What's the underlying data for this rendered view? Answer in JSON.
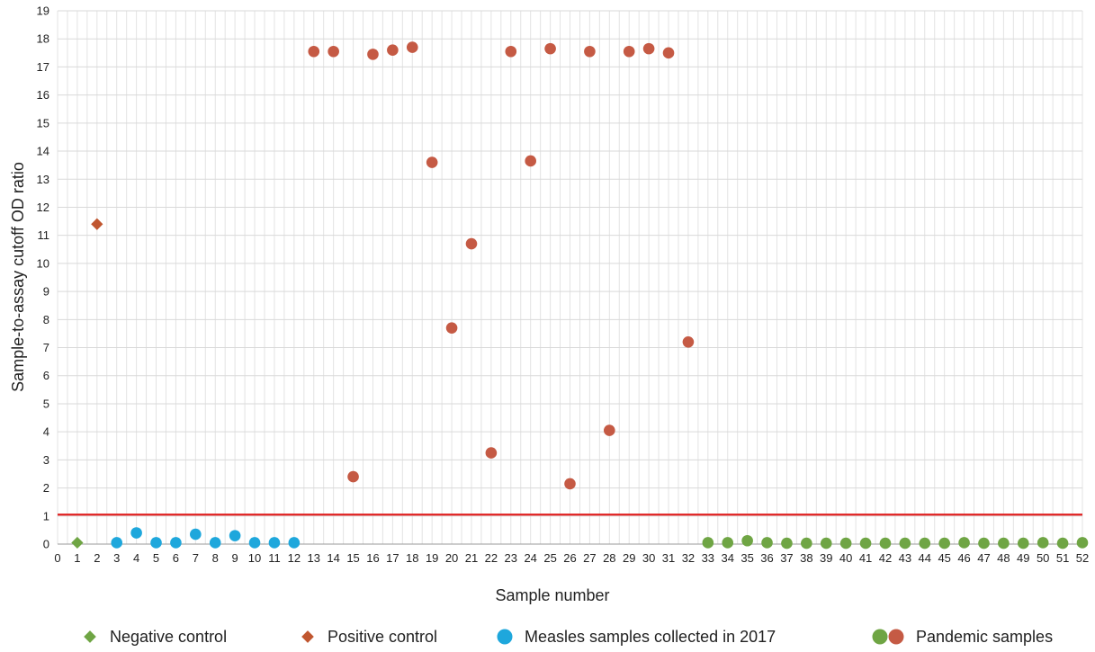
{
  "chart_data": {
    "type": "scatter",
    "title": "",
    "xlabel": "Sample number",
    "ylabel": "Sample-to-assay cutoff OD ratio",
    "xlim": [
      0,
      52
    ],
    "ylim": [
      0,
      19
    ],
    "x_ticks": [
      0,
      1,
      2,
      3,
      4,
      5,
      6,
      7,
      8,
      9,
      10,
      11,
      12,
      13,
      14,
      15,
      16,
      17,
      18,
      19,
      20,
      21,
      22,
      23,
      24,
      25,
      26,
      27,
      28,
      29,
      30,
      31,
      32,
      33,
      34,
      35,
      36,
      37,
      38,
      39,
      40,
      41,
      42,
      43,
      44,
      45,
      46,
      47,
      48,
      49,
      50,
      51,
      52
    ],
    "y_ticks": [
      0,
      1,
      2,
      3,
      4,
      5,
      6,
      7,
      8,
      9,
      10,
      11,
      12,
      13,
      14,
      15,
      16,
      17,
      18,
      19
    ],
    "grid": true,
    "legend_position": "bottom",
    "cutoff_line": {
      "y": 1.05,
      "color": "#e02020"
    },
    "series": [
      {
        "name": "Negative control",
        "marker": "diamond",
        "color": "#6fa544",
        "points": [
          {
            "x": 1,
            "y": 0.05
          }
        ]
      },
      {
        "name": "Positive control",
        "marker": "diamond",
        "color": "#c0562f",
        "points": [
          {
            "x": 2,
            "y": 11.4
          }
        ]
      },
      {
        "name": "Measles samples collected in 2017",
        "marker": "circle",
        "color": "#1ea7dc",
        "points": [
          {
            "x": 3,
            "y": 0.05
          },
          {
            "x": 4,
            "y": 0.4
          },
          {
            "x": 5,
            "y": 0.05
          },
          {
            "x": 6,
            "y": 0.05
          },
          {
            "x": 7,
            "y": 0.35
          },
          {
            "x": 8,
            "y": 0.05
          },
          {
            "x": 9,
            "y": 0.3
          },
          {
            "x": 10,
            "y": 0.05
          },
          {
            "x": 11,
            "y": 0.05
          },
          {
            "x": 12,
            "y": 0.05
          }
        ]
      },
      {
        "name": "Pandemic samples",
        "marker": "circle",
        "color": "#c55a44",
        "points": [
          {
            "x": 13,
            "y": 17.55
          },
          {
            "x": 14,
            "y": 17.55
          },
          {
            "x": 15,
            "y": 2.4
          },
          {
            "x": 16,
            "y": 17.45
          },
          {
            "x": 17,
            "y": 17.6
          },
          {
            "x": 18,
            "y": 17.7
          },
          {
            "x": 19,
            "y": 13.6
          },
          {
            "x": 20,
            "y": 7.7
          },
          {
            "x": 21,
            "y": 10.7
          },
          {
            "x": 22,
            "y": 3.25
          },
          {
            "x": 23,
            "y": 17.55
          },
          {
            "x": 24,
            "y": 13.65
          },
          {
            "x": 25,
            "y": 17.65
          },
          {
            "x": 26,
            "y": 2.15
          },
          {
            "x": 27,
            "y": 17.55
          },
          {
            "x": 28,
            "y": 4.05
          },
          {
            "x": 29,
            "y": 17.55
          },
          {
            "x": 30,
            "y": 17.65
          },
          {
            "x": 31,
            "y": 17.5
          },
          {
            "x": 32,
            "y": 7.2
          }
        ]
      },
      {
        "name": "Pandemic samples (negative)",
        "marker": "circle",
        "color": "#6fa544",
        "points": [
          {
            "x": 33,
            "y": 0.05
          },
          {
            "x": 34,
            "y": 0.05
          },
          {
            "x": 35,
            "y": 0.12
          },
          {
            "x": 36,
            "y": 0.05
          },
          {
            "x": 37,
            "y": 0.03
          },
          {
            "x": 38,
            "y": 0.03
          },
          {
            "x": 39,
            "y": 0.03
          },
          {
            "x": 40,
            "y": 0.03
          },
          {
            "x": 41,
            "y": 0.03
          },
          {
            "x": 42,
            "y": 0.03
          },
          {
            "x": 43,
            "y": 0.03
          },
          {
            "x": 44,
            "y": 0.03
          },
          {
            "x": 45,
            "y": 0.03
          },
          {
            "x": 46,
            "y": 0.05
          },
          {
            "x": 47,
            "y": 0.03
          },
          {
            "x": 48,
            "y": 0.03
          },
          {
            "x": 49,
            "y": 0.03
          },
          {
            "x": 50,
            "y": 0.05
          },
          {
            "x": 51,
            "y": 0.03
          },
          {
            "x": 52,
            "y": 0.05
          }
        ]
      }
    ],
    "legend": [
      {
        "label": "Negative control",
        "marker": "diamond",
        "colors": [
          "#6fa544"
        ]
      },
      {
        "label": "Positive control",
        "marker": "diamond",
        "colors": [
          "#c0562f"
        ]
      },
      {
        "label": "Measles samples collected in 2017",
        "marker": "circle",
        "colors": [
          "#1ea7dc"
        ]
      },
      {
        "label": "Pandemic samples",
        "marker": "circle",
        "colors": [
          "#6fa544",
          "#c55a44"
        ]
      }
    ]
  }
}
